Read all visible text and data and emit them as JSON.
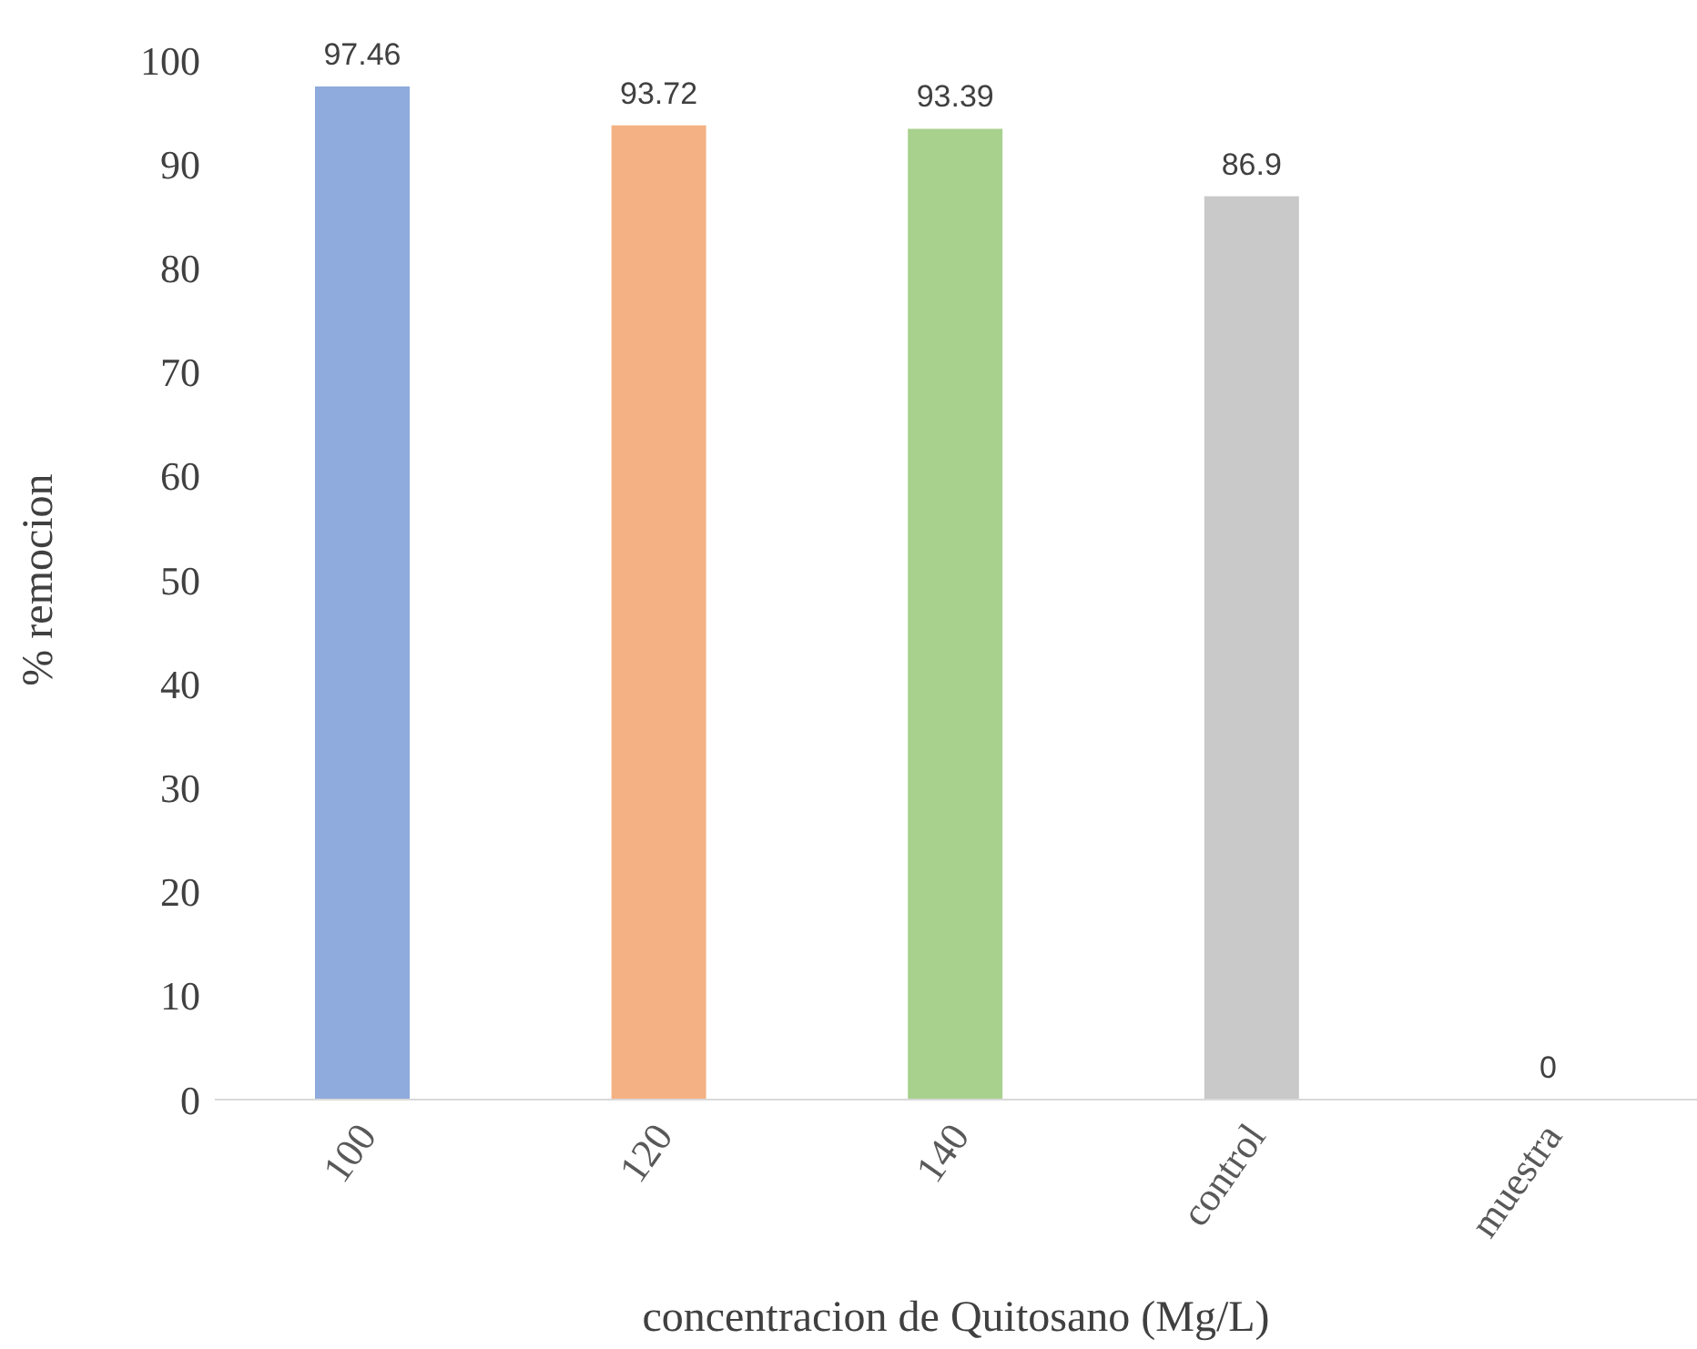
{
  "chart_data": {
    "type": "bar",
    "xlabel": "concentracion de Quitosano (Mg/L)",
    "ylabel": "% remocion",
    "categories": [
      "100",
      "120",
      "140",
      "control",
      "muestra"
    ],
    "values": [
      97.46,
      93.72,
      93.39,
      86.9,
      0
    ],
    "colors": [
      "#8faadc",
      "#f4b183",
      "#a9d18e",
      "#c9c9c9",
      "#ffd966"
    ],
    "ylim": [
      0,
      100
    ],
    "yticks": [
      0,
      10,
      20,
      30,
      40,
      50,
      60,
      70,
      80,
      90,
      100
    ],
    "data_labels": true,
    "grid": false,
    "legend": false
  }
}
